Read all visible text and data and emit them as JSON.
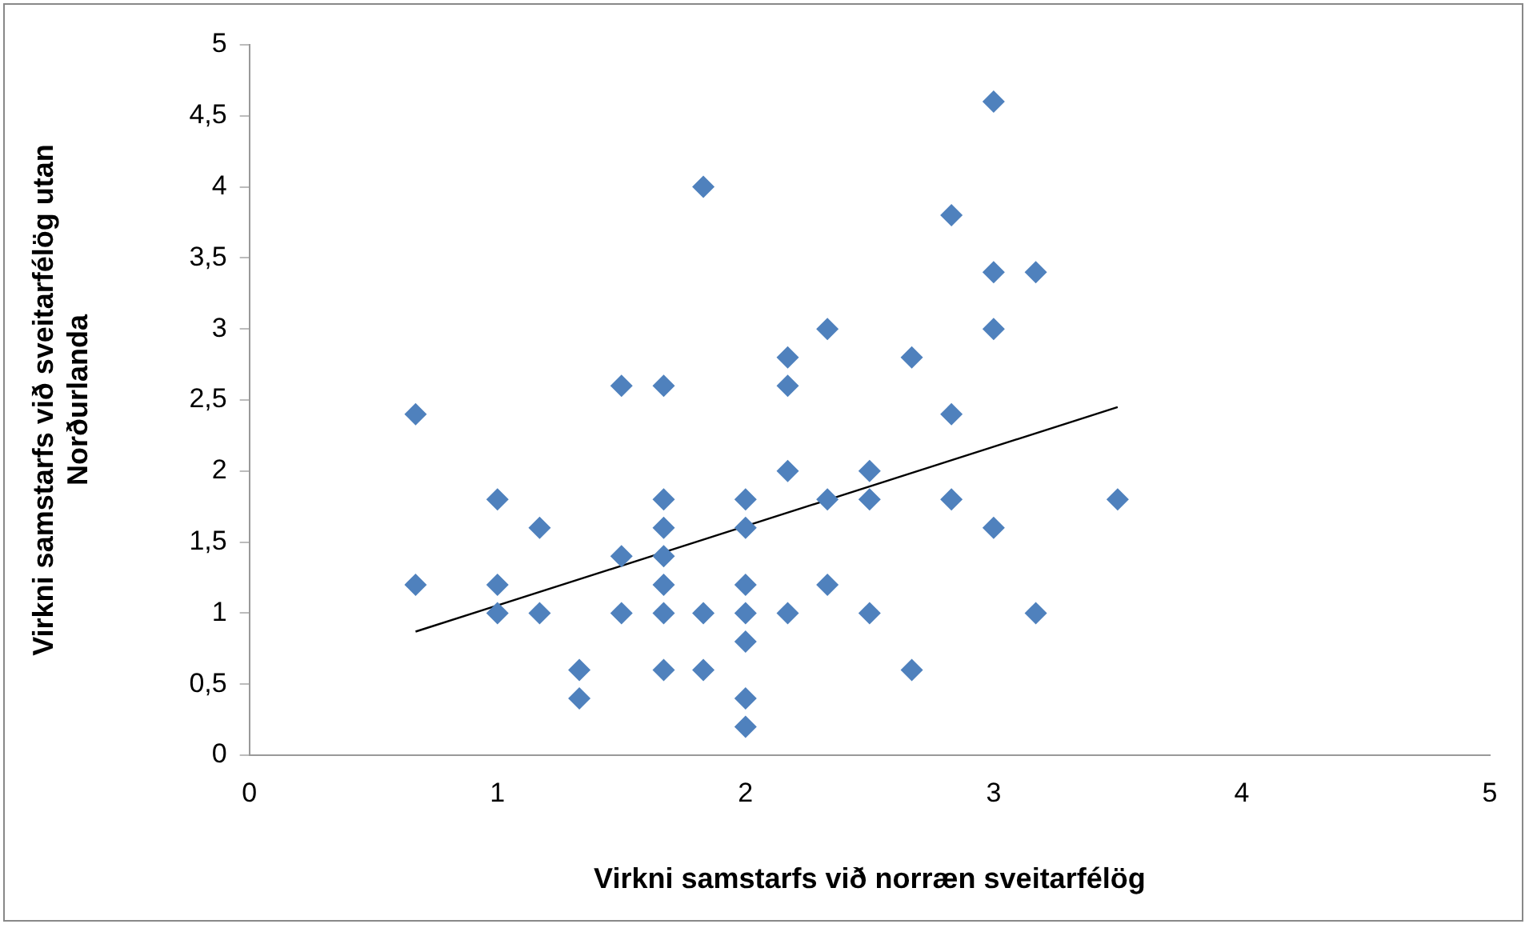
{
  "chart_data": {
    "type": "scatter",
    "xlabel": "Virkni samstarfs við norræn sveitarfélög",
    "ylabel": "Virkni samstarfs við sveitarfélög utan Norðurlanda",
    "marker": "diamond",
    "grid": false,
    "legend": false,
    "xlim": [
      0,
      5
    ],
    "xticks": [
      0,
      1,
      2,
      3,
      4,
      5
    ],
    "ylim": [
      0,
      5
    ],
    "yticks": [
      0,
      {
        "value": 0.5,
        "label": "0,5"
      },
      1,
      {
        "value": 1.5,
        "label": "1,5"
      },
      2,
      {
        "value": 2.5,
        "label": "2,5"
      },
      3,
      {
        "value": 3.5,
        "label": "3,5"
      },
      4,
      {
        "value": 4.5,
        "label": "4,5"
      },
      5
    ],
    "series": [
      {
        "color": "#4f81bd",
        "x": [
          0.67,
          0.67,
          1,
          1,
          1,
          1.17,
          1.17,
          1.33,
          1.33,
          1.5,
          1.5,
          1.5,
          1.67,
          1.67,
          1.67,
          1.67,
          1.67,
          1.67,
          1.67,
          1.83,
          1.83,
          1.83,
          2,
          2,
          2,
          2,
          2,
          2,
          2,
          2.17,
          2.17,
          2.17,
          2.17,
          2.33,
          2.33,
          2.33,
          2.5,
          2.5,
          2.5,
          2.67,
          2.67,
          2.83,
          2.83,
          2.83,
          3,
          3,
          3,
          3,
          3.17,
          3.17,
          3.5
        ],
        "values": [
          2.4,
          1.2,
          1.8,
          1.2,
          1.0,
          1.6,
          1.0,
          0.6,
          0.4,
          2.6,
          1.4,
          1.0,
          2.6,
          1.8,
          1.6,
          1.4,
          1.2,
          1.0,
          0.6,
          4.0,
          1.0,
          0.6,
          1.8,
          1.6,
          1.2,
          1.0,
          0.8,
          0.4,
          0.2,
          2.8,
          2.6,
          2.0,
          1.0,
          3.0,
          1.8,
          1.2,
          2.0,
          1.8,
          1.0,
          2.8,
          0.6,
          3.8,
          2.4,
          1.8,
          4.6,
          3.4,
          3.0,
          1.6,
          3.4,
          1.0,
          1.8
        ]
      },
      {
        "type": "line",
        "color": "#000000",
        "marker": "none",
        "x": [
          0.67,
          3.5
        ],
        "values": [
          0.87,
          2.45
        ]
      }
    ]
  }
}
